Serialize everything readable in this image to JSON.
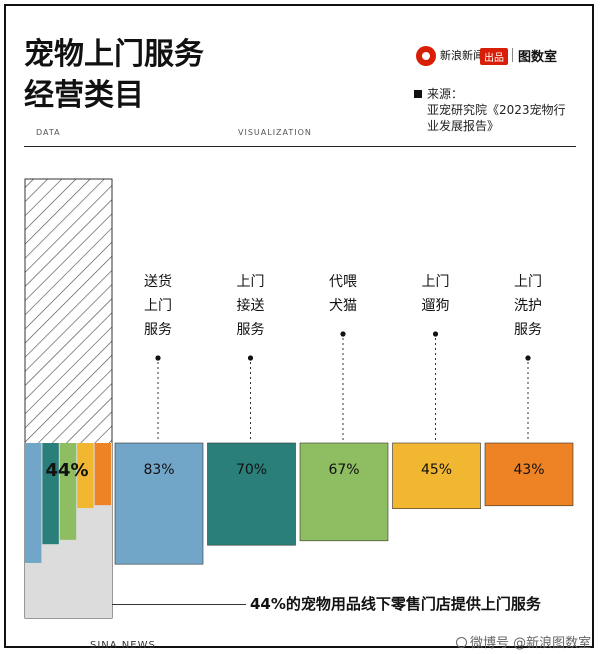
{
  "title_lines": [
    "宠物上门服务",
    "经营类目"
  ],
  "brand": {
    "name": "新浪新闻",
    "badge": "出品",
    "room": "图数室"
  },
  "source": {
    "lines": [
      "来源：",
      "亚宠研究院《2023宠物行",
      "业发展报告》"
    ]
  },
  "axis_labels": {
    "left": "DATA",
    "right": "VISUALIZATION"
  },
  "footer": "44%的宠物用品线下零售门店提供上门服务",
  "watermark": {
    "left": "SINA NEWS",
    "right": "微博号 @新浪图数室"
  },
  "colors": {
    "blue": "#72a6c9",
    "teal": "#2a7f7a",
    "green": "#8fbd62",
    "yellow": "#f2b731",
    "orange": "#ee8326",
    "grey": "#dcdcdc"
  },
  "chart_data": {
    "type": "bar",
    "title": "宠物上门服务经营类目",
    "overall": {
      "label": "44%",
      "value": 44
    },
    "categories": [
      "送货上门服务",
      "上门接送服务",
      "代喂犬猫",
      "上门遛狗",
      "上门洗护服务"
    ],
    "category_lines": [
      [
        "送货",
        "上门",
        "服务"
      ],
      [
        "上门",
        "接送",
        "服务"
      ],
      [
        "代喂",
        "犬猫"
      ],
      [
        "上门",
        "遛狗"
      ],
      [
        "上门",
        "洗护",
        "服务"
      ]
    ],
    "values": [
      83,
      70,
      67,
      45,
      43
    ],
    "value_labels": [
      "83%",
      "70%",
      "67%",
      "45%",
      "43%"
    ],
    "ylim": [
      0,
      100
    ]
  }
}
